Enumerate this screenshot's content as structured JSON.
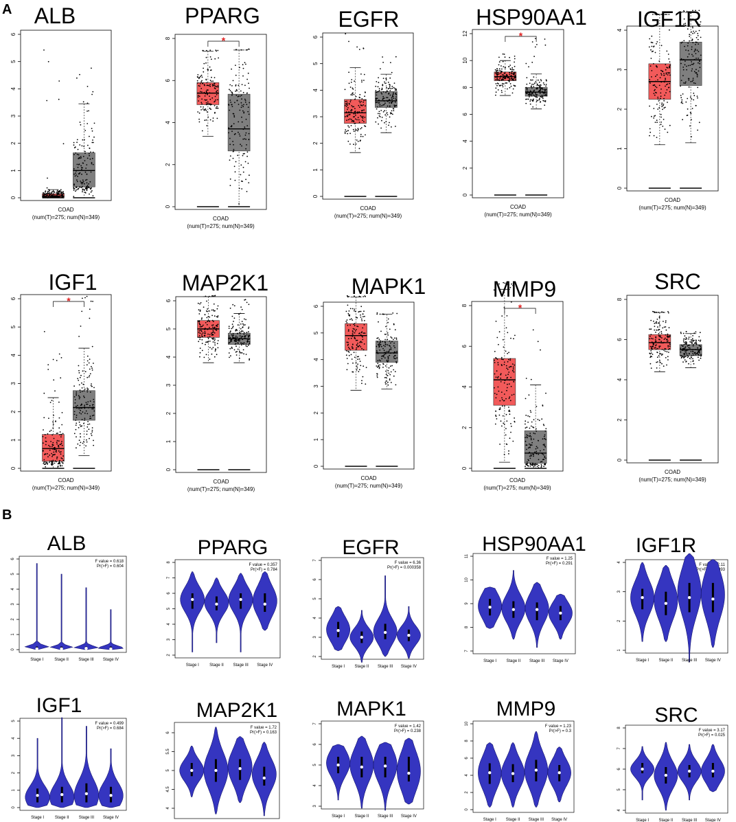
{
  "panels": {
    "A": {
      "letter": "A"
    },
    "B": {
      "letter": "B"
    }
  },
  "colors": {
    "tumor": "#f25a5a",
    "normal": "#7f7f7f",
    "violin": "#3535c0",
    "violin_edge": "#16166e",
    "star": "#e02020",
    "points": "#000000"
  },
  "chart_data": [
    {
      "type": "box",
      "gene": "ALB",
      "title": "ALB",
      "dataset": "COAD",
      "sample_info": "(num(T)=275; num(N)=349)",
      "ylim": [
        0,
        6
      ],
      "ticks": [
        0,
        1,
        2,
        3,
        4,
        5,
        6
      ],
      "significant": false,
      "tumor": {
        "min": 0,
        "q1": 0.02,
        "median": 0.06,
        "q3": 0.15,
        "max": 0.3,
        "outlier_max": 5.7
      },
      "normal": {
        "min": 0,
        "q1": 0.4,
        "median": 1.0,
        "q3": 1.65,
        "max": 3.45,
        "outlier_max": 5.3
      }
    },
    {
      "type": "box",
      "gene": "PPARG",
      "title": "PPARG",
      "dataset": "COAD",
      "sample_info": "(num(T)=275; num(N)=349)",
      "ylim": [
        0,
        8
      ],
      "ticks": [
        0,
        2,
        4,
        6,
        8
      ],
      "significant": true,
      "tumor": {
        "min": 3.35,
        "q1": 4.85,
        "median": 5.4,
        "q3": 5.9,
        "max": 7.4,
        "outlier_max": 7.45
      },
      "normal": {
        "min": 0,
        "q1": 2.65,
        "median": 3.7,
        "q3": 5.35,
        "max": 7.45,
        "outlier_max": 7.5
      }
    },
    {
      "type": "box",
      "gene": "EGFR",
      "title": "EGFR",
      "dataset": "COAD",
      "sample_info": "(num(T)=275; num(N)=349)",
      "ylim": [
        0,
        6
      ],
      "ticks": [
        0,
        1,
        2,
        3,
        4,
        5,
        6
      ],
      "significant": false,
      "tumor": {
        "min": 1.65,
        "q1": 2.75,
        "median": 3.15,
        "q3": 3.65,
        "max": 4.85,
        "outlier_max": 6.2
      },
      "normal": {
        "min": 2.4,
        "q1": 3.35,
        "median": 3.6,
        "q3": 3.95,
        "max": 4.6,
        "outlier_max": 5.3
      }
    },
    {
      "type": "box",
      "gene": "HSP90AA1",
      "title": "HSP90AA1",
      "dataset": "COAD",
      "sample_info": "(num(T)=275; num(N)=349)",
      "ylim": [
        0,
        12
      ],
      "ticks": [
        0,
        2,
        4,
        6,
        8,
        10,
        12
      ],
      "significant": true,
      "tumor": {
        "min": 7.4,
        "q1": 8.5,
        "median": 8.8,
        "q3": 9.15,
        "max": 10.0,
        "outlier_max": 10.5
      },
      "normal": {
        "min": 6.4,
        "q1": 7.35,
        "median": 7.65,
        "q3": 8.0,
        "max": 9.0,
        "outlier_max": 11.9
      }
    },
    {
      "type": "box",
      "gene": "IGF1R",
      "title": "IGF1R",
      "dataset": "COAD",
      "sample_info": "(num(T)=275; num(N)=349)",
      "ylim": [
        0,
        4
      ],
      "ticks": [
        0,
        1,
        2,
        3,
        4
      ],
      "significant": false,
      "tumor": {
        "min": 1.1,
        "q1": 2.25,
        "median": 2.7,
        "q3": 3.15,
        "max": 4.4,
        "outlier_max": 4.4
      },
      "normal": {
        "min": 1.15,
        "q1": 2.6,
        "median": 3.25,
        "q3": 3.7,
        "max": 4.45,
        "outlier_max": 4.5
      }
    },
    {
      "type": "box",
      "gene": "IGF1",
      "title": "IGF1",
      "dataset": "COAD",
      "sample_info": "(num(T)=275; num(N)=349)",
      "ylim": [
        0,
        6
      ],
      "ticks": [
        0,
        1,
        2,
        3,
        4,
        5,
        6
      ],
      "significant": true,
      "tumor": {
        "min": 0,
        "q1": 0.25,
        "median": 0.7,
        "q3": 1.2,
        "max": 2.5,
        "outlier_max": 5.2
      },
      "normal": {
        "min": 0.45,
        "q1": 1.7,
        "median": 2.15,
        "q3": 2.75,
        "max": 4.25,
        "outlier_max": 6.3
      }
    },
    {
      "type": "box",
      "gene": "MAP2K1",
      "title": "MAP2K1",
      "dataset": "COAD",
      "sample_info": "(num(T)=275; num(N)=349)",
      "ylim": [
        0,
        6
      ],
      "ticks": [
        0,
        1,
        2,
        3,
        4,
        5,
        6
      ],
      "significant": false,
      "tumor": {
        "min": 3.8,
        "q1": 4.7,
        "median": 5.0,
        "q3": 5.3,
        "max": 6.15,
        "outlier_max": 6.2
      },
      "normal": {
        "min": 3.8,
        "q1": 4.45,
        "median": 4.65,
        "q3": 4.85,
        "max": 5.55,
        "outlier_max": 6.25
      }
    },
    {
      "type": "box",
      "gene": "MAPK1",
      "title": "MAPK1",
      "dataset": "COAD",
      "sample_info": "(num(T)=275; num(N)=349)",
      "ylim": [
        0,
        6
      ],
      "ticks": [
        0,
        1,
        2,
        3,
        4,
        5,
        6
      ],
      "significant": false,
      "tumor": {
        "min": 2.85,
        "q1": 4.35,
        "median": 4.9,
        "q3": 5.35,
        "max": 6.35,
        "outlier_max": 6.4
      },
      "normal": {
        "min": 2.9,
        "q1": 3.9,
        "median": 4.25,
        "q3": 4.7,
        "max": 5.7,
        "outlier_max": 5.75
      }
    },
    {
      "type": "box",
      "gene": "MMP9",
      "title": "MMP9",
      "dataset": "COAD",
      "sample_info": "(num(T)=275; num(N)=349)",
      "ylim": [
        0,
        8
      ],
      "ticks": [
        0,
        2,
        4,
        6,
        8
      ],
      "significant": true,
      "tumor": {
        "min": 0.3,
        "q1": 3.1,
        "median": 4.35,
        "q3": 5.4,
        "max": 8.8,
        "outlier_max": 9.2
      },
      "normal": {
        "min": 0,
        "q1": 0.25,
        "median": 0.75,
        "q3": 1.85,
        "max": 4.1,
        "outlier_max": 7.8
      }
    },
    {
      "type": "box",
      "gene": "SRC",
      "title": "SRC",
      "dataset": "COAD",
      "sample_info": "(num(T)=275; num(N)=349)",
      "ylim": [
        0,
        8
      ],
      "ticks": [
        0,
        2,
        4,
        6,
        8
      ],
      "significant": false,
      "tumor": {
        "min": 4.4,
        "q1": 5.5,
        "median": 5.85,
        "q3": 6.25,
        "max": 7.35,
        "outlier_max": 7.4
      },
      "normal": {
        "min": 4.6,
        "q1": 5.2,
        "median": 5.5,
        "q3": 5.75,
        "max": 6.3,
        "outlier_max": 6.4
      }
    },
    {
      "type": "violin",
      "gene": "ALB",
      "title": "ALB",
      "ylim": [
        0,
        6
      ],
      "ticks": [
        0,
        1,
        2,
        3,
        4,
        5,
        6
      ],
      "f_text": "F value = 0.618",
      "p_text": "Pr(>F) = 0.604",
      "stages": [
        "Stage I",
        "Stage II",
        "Stage III",
        "Stage IV"
      ],
      "violins": [
        {
          "min": 0,
          "max": 5.7,
          "median": 0.05,
          "q1": 0.02,
          "q3": 0.2,
          "mode": 0.15
        },
        {
          "min": 0,
          "max": 5.0,
          "median": 0.05,
          "q1": 0.02,
          "q3": 0.2,
          "mode": 0.1
        },
        {
          "min": 0,
          "max": 4.1,
          "median": 0.08,
          "q1": 0.02,
          "q3": 0.2,
          "mode": 0.1
        },
        {
          "min": 0,
          "max": 2.65,
          "median": 0.05,
          "q1": 0.02,
          "q3": 0.2,
          "mode": 0.1
        }
      ]
    },
    {
      "type": "violin",
      "gene": "PPARG",
      "title": "PPARG",
      "ylim": [
        2,
        8
      ],
      "ticks": [
        2,
        3,
        4,
        5,
        6,
        7,
        8
      ],
      "f_text": "F value = 0.357",
      "p_text": "Pr(>F) = 0.784",
      "stages": [
        "Stage I",
        "Stage II",
        "Stage III",
        "Stage IV"
      ],
      "violins": [
        {
          "min": 2.2,
          "max": 7.4,
          "median": 5.6,
          "q1": 5.0,
          "q3": 6.0,
          "mode": 5.6
        },
        {
          "min": 2.8,
          "max": 7.0,
          "median": 5.3,
          "q1": 4.9,
          "q3": 5.8,
          "mode": 5.4
        },
        {
          "min": 2.2,
          "max": 7.3,
          "median": 5.6,
          "q1": 5.0,
          "q3": 6.0,
          "mode": 5.6
        },
        {
          "min": 3.6,
          "max": 7.4,
          "median": 5.3,
          "q1": 4.8,
          "q3": 6.0,
          "mode": 5.5
        }
      ]
    },
    {
      "type": "violin",
      "gene": "EGFR",
      "title": "EGFR",
      "ylim": [
        2,
        7
      ],
      "ticks": [
        2,
        3,
        4,
        5,
        6,
        7
      ],
      "f_text": "F value = 6.36",
      "p_text": "Pr(>F) = 0.000358",
      "stages": [
        "Stage I",
        "Stage II",
        "Stage III",
        "Stage IV"
      ],
      "violins": [
        {
          "min": 2.3,
          "max": 4.6,
          "median": 3.35,
          "q1": 3.0,
          "q3": 3.8,
          "mode": 3.4
        },
        {
          "min": 1.7,
          "max": 4.4,
          "median": 3.0,
          "q1": 2.7,
          "q3": 3.3,
          "mode": 3.0
        },
        {
          "min": 2.0,
          "max": 6.2,
          "median": 3.25,
          "q1": 2.9,
          "q3": 3.7,
          "mode": 3.3
        },
        {
          "min": 1.9,
          "max": 4.6,
          "median": 3.1,
          "q1": 2.8,
          "q3": 3.4,
          "mode": 3.1
        }
      ]
    },
    {
      "type": "violin",
      "gene": "HSP90AA1",
      "title": "HSP90AA1",
      "ylim": [
        7,
        11
      ],
      "ticks": [
        7,
        8,
        9,
        10,
        11
      ],
      "f_text": "F value = 1.25",
      "p_text": "Pr(>F) = 0.291",
      "stages": [
        "Stage I",
        "Stage II",
        "Stage III",
        "Stage IV"
      ],
      "violins": [
        {
          "min": 7.95,
          "max": 9.7,
          "median": 8.85,
          "q1": 8.5,
          "q3": 9.2,
          "mode": 8.9
        },
        {
          "min": 7.5,
          "max": 10.4,
          "median": 8.75,
          "q1": 8.4,
          "q3": 9.1,
          "mode": 8.8
        },
        {
          "min": 7.15,
          "max": 9.9,
          "median": 8.75,
          "q1": 8.3,
          "q3": 9.05,
          "mode": 8.8
        },
        {
          "min": 7.5,
          "max": 9.4,
          "median": 8.6,
          "q1": 8.3,
          "q3": 8.9,
          "mode": 8.6
        }
      ]
    },
    {
      "type": "violin",
      "gene": "IGF1R",
      "title": "IGF1R",
      "ylim": [
        1,
        4
      ],
      "ticks": [
        1,
        2,
        3,
        4
      ],
      "f_text": "F value = 2.11",
      "p_text": "Pr(>F) = 0.0993",
      "stages": [
        "Stage I",
        "Stage II",
        "Stage III",
        "Stage IV"
      ],
      "violins": [
        {
          "min": 1.3,
          "max": 4.0,
          "median": 2.8,
          "q1": 2.4,
          "q3": 3.1,
          "mode": 2.8
        },
        {
          "min": 1.3,
          "max": 3.9,
          "median": 2.6,
          "q1": 2.2,
          "q3": 3.0,
          "mode": 2.7
        },
        {
          "min": 0.6,
          "max": 4.3,
          "median": 2.8,
          "q1": 2.3,
          "q3": 3.3,
          "mode": 3.0
        },
        {
          "min": 1.1,
          "max": 4.1,
          "median": 2.75,
          "q1": 2.3,
          "q3": 3.3,
          "mode": 2.9
        }
      ]
    },
    {
      "type": "violin",
      "gene": "IGF1",
      "title": "IGF1",
      "ylim": [
        0,
        5
      ],
      "ticks": [
        0,
        1,
        2,
        3,
        4,
        5
      ],
      "f_text": "F value = 0.499",
      "p_text": "Pr(>F) = 0.684",
      "stages": [
        "Stage I",
        "Stage II",
        "Stage III",
        "Stage IV"
      ],
      "violins": [
        {
          "min": 0,
          "max": 4.0,
          "median": 0.7,
          "q1": 0.3,
          "q3": 1.1,
          "mode": 0.6
        },
        {
          "min": 0,
          "max": 5.2,
          "median": 0.75,
          "q1": 0.3,
          "q3": 1.2,
          "mode": 0.6
        },
        {
          "min": 0,
          "max": 4.7,
          "median": 0.8,
          "q1": 0.3,
          "q3": 1.4,
          "mode": 0.7
        },
        {
          "min": 0,
          "max": 3.4,
          "median": 0.7,
          "q1": 0.3,
          "q3": 1.2,
          "mode": 0.7
        }
      ]
    },
    {
      "type": "violin",
      "gene": "MAP2K1",
      "title": "MAP2K1",
      "ylim": [
        3.8,
        6.2
      ],
      "ticks": [
        4.0,
        4.5,
        5.0,
        5.5,
        6.0
      ],
      "f_text": "F value = 1.72",
      "p_text": "Pr(>F) = 0.163",
      "stages": [
        "Stage I",
        "Stage II",
        "Stage III",
        "Stage IV"
      ],
      "violins": [
        {
          "min": 4.3,
          "max": 5.65,
          "median": 5.0,
          "q1": 4.85,
          "q3": 5.2,
          "mode": 5.0
        },
        {
          "min": 3.85,
          "max": 6.15,
          "median": 5.0,
          "q1": 4.7,
          "q3": 5.3,
          "mode": 5.0
        },
        {
          "min": 4.15,
          "max": 5.9,
          "median": 5.05,
          "q1": 4.75,
          "q3": 5.3,
          "mode": 5.1
        },
        {
          "min": 3.8,
          "max": 5.75,
          "median": 4.8,
          "q1": 4.6,
          "q3": 5.1,
          "mode": 4.9
        }
      ]
    },
    {
      "type": "violin",
      "gene": "MAPK1",
      "title": "MAPK1",
      "ylim": [
        3,
        7
      ],
      "ticks": [
        3,
        4,
        5,
        6,
        7
      ],
      "f_text": "F value = 1.42",
      "p_text": "Pr(>F) = 0.238",
      "stages": [
        "Stage I",
        "Stage II",
        "Stage III",
        "Stage IV"
      ],
      "violins": [
        {
          "min": 3.3,
          "max": 6.0,
          "median": 5.0,
          "q1": 4.6,
          "q3": 5.4,
          "mode": 5.1
        },
        {
          "min": 2.9,
          "max": 6.4,
          "median": 4.9,
          "q1": 4.4,
          "q3": 5.4,
          "mode": 5.0
        },
        {
          "min": 2.8,
          "max": 6.1,
          "median": 4.95,
          "q1": 4.4,
          "q3": 5.4,
          "mode": 5.0
        },
        {
          "min": 3.1,
          "max": 6.3,
          "median": 4.6,
          "q1": 4.2,
          "q3": 5.4,
          "mode": 4.7
        }
      ]
    },
    {
      "type": "violin",
      "gene": "MMP9",
      "title": "MMP9",
      "ylim": [
        0,
        10
      ],
      "ticks": [
        0,
        2,
        4,
        6,
        8,
        10
      ],
      "f_text": "F value = 1.23",
      "p_text": "Pr(>F) = 0.3",
      "stages": [
        "Stage I",
        "Stage II",
        "Stage III",
        "Stage IV"
      ],
      "violins": [
        {
          "min": 0.3,
          "max": 7.8,
          "median": 4.3,
          "q1": 3.0,
          "q3": 5.4,
          "mode": 4.3
        },
        {
          "min": 0.3,
          "max": 7.8,
          "median": 4.2,
          "q1": 3.2,
          "q3": 5.3,
          "mode": 4.2
        },
        {
          "min": 0.3,
          "max": 9.1,
          "median": 4.6,
          "q1": 3.3,
          "q3": 5.8,
          "mode": 4.6
        },
        {
          "min": 0.9,
          "max": 7.3,
          "median": 4.3,
          "q1": 3.3,
          "q3": 5.2,
          "mode": 4.3
        }
      ]
    },
    {
      "type": "violin",
      "gene": "SRC",
      "title": "SRC",
      "ylim": [
        4,
        8
      ],
      "ticks": [
        4,
        5,
        6,
        7,
        8
      ],
      "f_text": "F value = 3.17",
      "p_text": "Pr(>F) = 0.025",
      "stages": [
        "Stage I",
        "Stage II",
        "Stage III",
        "Stage IV"
      ],
      "violins": [
        {
          "min": 4.5,
          "max": 7.1,
          "median": 6.0,
          "q1": 5.8,
          "q3": 6.3,
          "mode": 6.0
        },
        {
          "min": 4.0,
          "max": 7.3,
          "median": 5.7,
          "q1": 5.3,
          "q3": 6.1,
          "mode": 5.7
        },
        {
          "min": 4.5,
          "max": 7.2,
          "median": 5.9,
          "q1": 5.6,
          "q3": 6.2,
          "mode": 5.9
        },
        {
          "min": 4.9,
          "max": 7.2,
          "median": 5.9,
          "q1": 5.6,
          "q3": 6.3,
          "mode": 5.9
        }
      ]
    }
  ]
}
